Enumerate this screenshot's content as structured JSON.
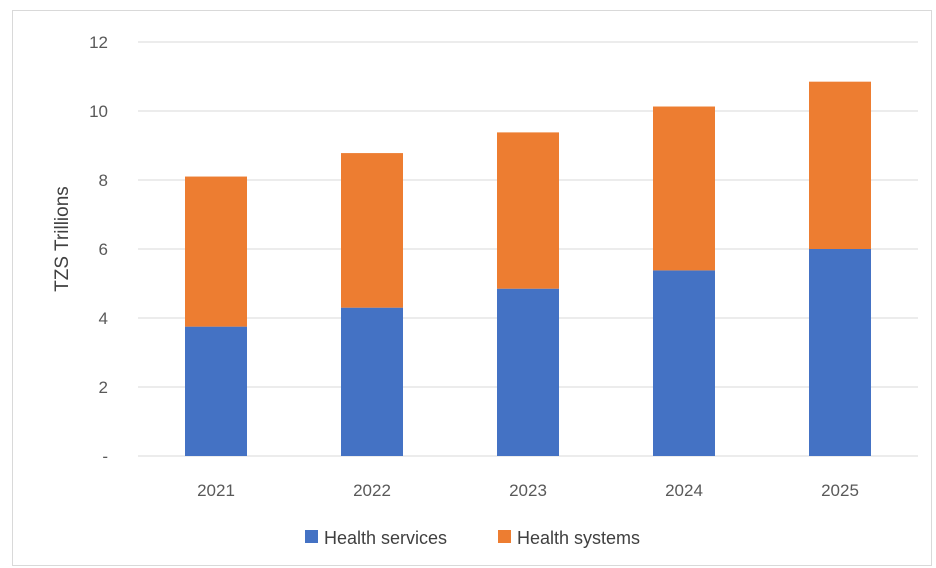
{
  "chart_data": {
    "type": "bar",
    "stacked": true,
    "title": "",
    "xlabel": "",
    "ylabel": "TZS Trillions",
    "ylim": [
      0,
      12
    ],
    "yticks": [
      0,
      2,
      4,
      6,
      8,
      10,
      12
    ],
    "ytick_labels": [
      "-",
      "2",
      "4",
      "6",
      "8",
      "10",
      "12"
    ],
    "grid": "horizontal",
    "legend_position": "bottom",
    "categories": [
      "2021",
      "2022",
      "2023",
      "2024",
      "2025"
    ],
    "series": [
      {
        "name": "Health services",
        "color": "#4472C4",
        "values": [
          3.75,
          4.3,
          4.85,
          5.38,
          6.0
        ]
      },
      {
        "name": "Health systems",
        "color": "#ED7D31",
        "values": [
          4.35,
          4.48,
          4.53,
          4.75,
          4.85
        ]
      }
    ]
  }
}
